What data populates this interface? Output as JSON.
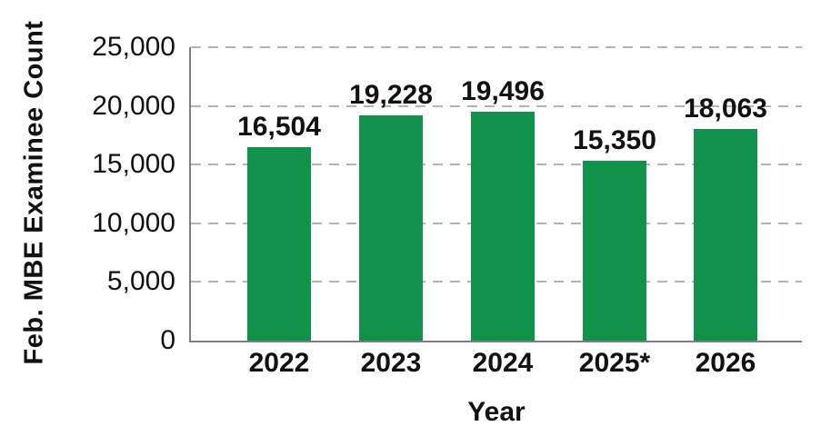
{
  "chart_data": {
    "type": "bar",
    "title": "",
    "xlabel": "Year",
    "ylabel": "Feb. MBE Examinee Count",
    "categories": [
      "2022",
      "2023",
      "2024",
      "2025*",
      "2026"
    ],
    "values": [
      16504,
      19228,
      19496,
      15350,
      18063
    ],
    "value_labels": [
      "16,504",
      "19,228",
      "19,496",
      "15,350",
      "18,063"
    ],
    "ylim": [
      0,
      25000
    ],
    "yticks": [
      0,
      5000,
      10000,
      15000,
      20000,
      25000
    ],
    "ytick_labels": [
      "0",
      "5,000",
      "10,000",
      "15,000",
      "20,000",
      "25,000"
    ],
    "grid": "horizontal-dashed",
    "legend": "none",
    "colors": {
      "bar": "#10924A",
      "axis": "#7f7f7f",
      "gridline": "#b3b3b3",
      "text": "#111111",
      "background": "#ffffff"
    }
  }
}
